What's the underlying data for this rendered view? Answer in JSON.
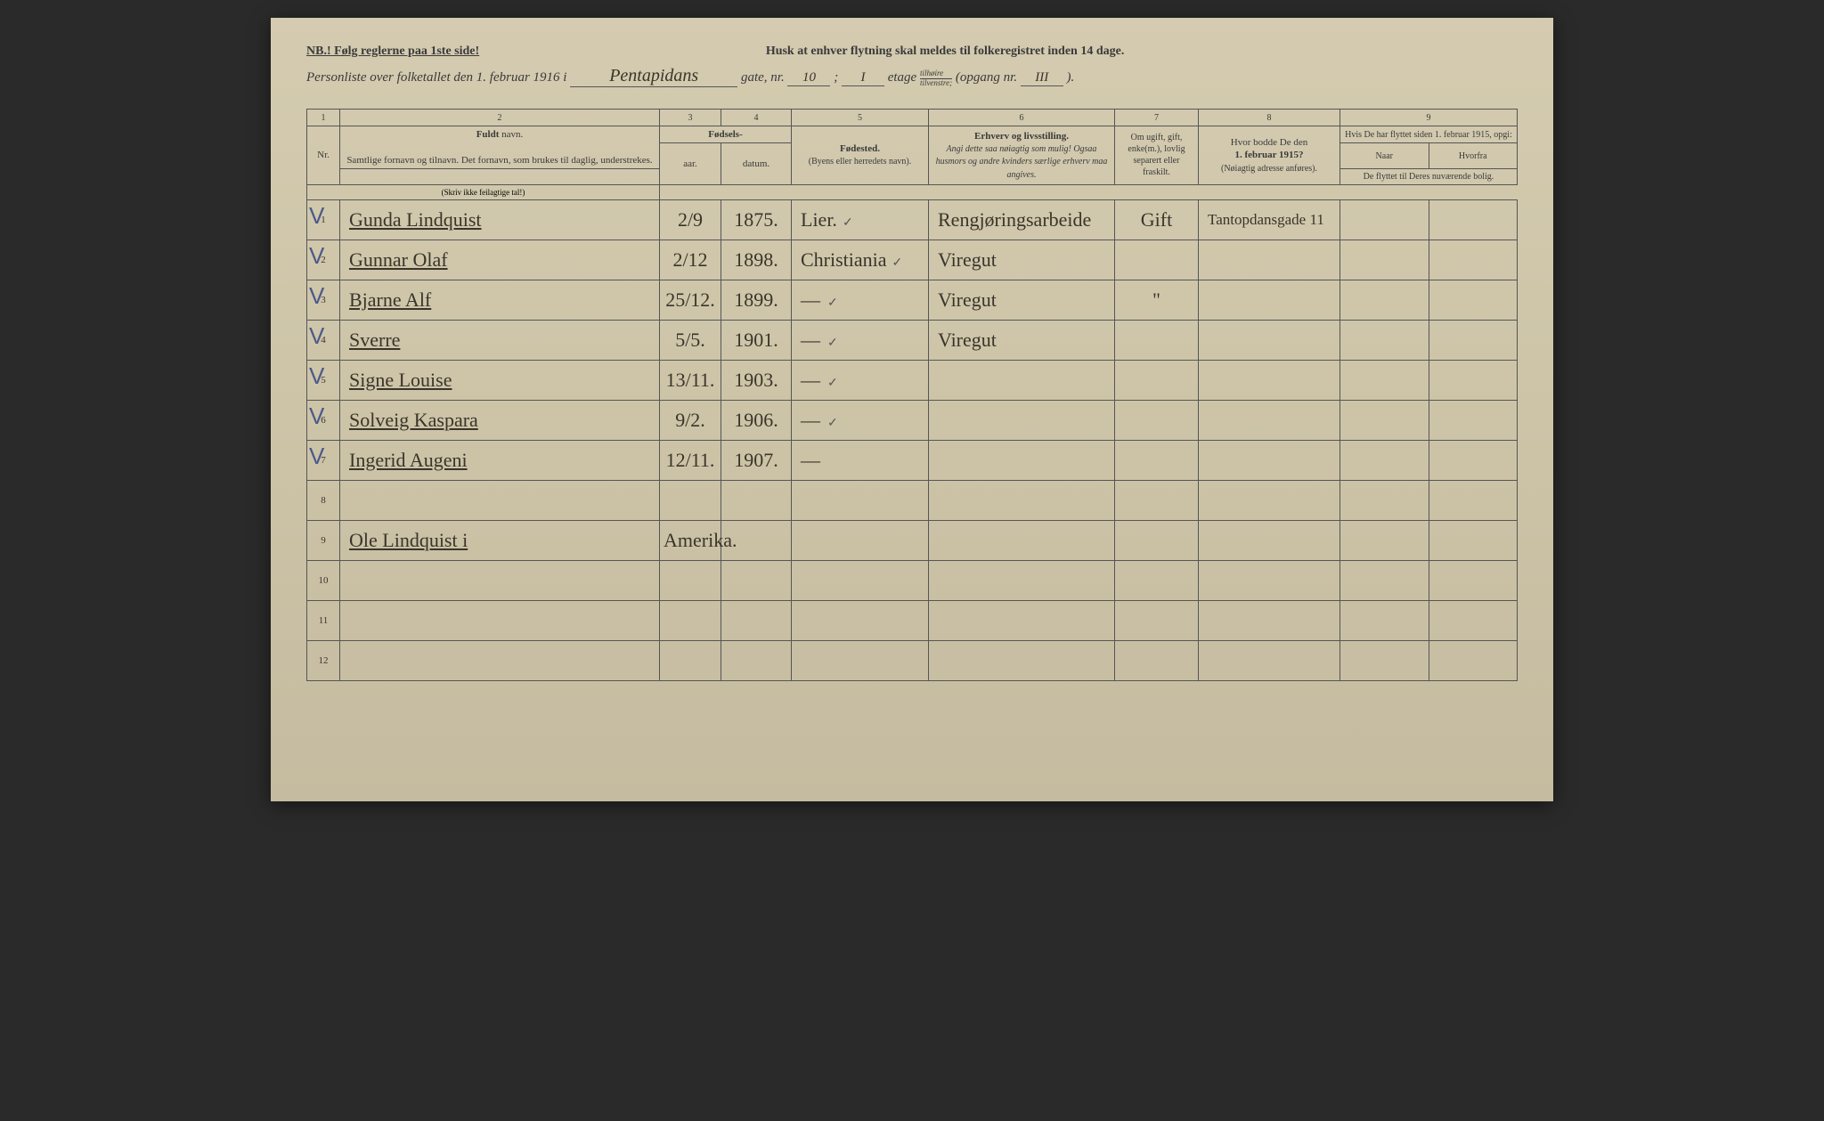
{
  "top_nb": "NB.!  Følg reglerne paa 1ste side!",
  "top_center": "Husk at enhver flytning skal meldes til folkeregistret inden 14 dage.",
  "hdr": {
    "prefix": "Personliste over folketallet den 1. februar 1916 i",
    "street": "Pentapidans",
    "gate_lbl": "gate, nr.",
    "gate_nr": "10",
    "sep": ";",
    "etage_nr": "I",
    "etage_lbl": "etage",
    "frac_top": "tilhøire",
    "frac_bot": "tilvenstre;",
    "opgang_lbl": "(opgang nr.",
    "opgang_nr": "III",
    "close": ")."
  },
  "cols": [
    "1",
    "2",
    "3",
    "4",
    "5",
    "6",
    "7",
    "8",
    "9"
  ],
  "head": {
    "nr": "Nr.",
    "name_t": "Fuldt",
    "name_t2": "navn.",
    "name_sub": "Samtlige fornavn og tilnavn. Det fornavn, som brukes til daglig, understrekes.",
    "fod_t": "Fødsels-",
    "aar": "aar.",
    "datum": "datum.",
    "fod_note": "(Skriv ikke feilagtige tal!)",
    "place_t": "Fødested.",
    "place_sub": "(Byens eller herredets navn).",
    "occ_t": "Erhverv og livsstilling.",
    "occ_sub": "Angi dette saa nøiagtig som mulig! Ogsaa husmors og andre kvinders særlige erhverv maa angives.",
    "mar": "Om ugift, gift, enke(m.), lovlig separert eller fraskilt.",
    "prev_t": "Hvor bodde De den",
    "prev_b": "1. februar 1915?",
    "prev_sub": "(Nøiagtig adresse anføres).",
    "mv_t": "Hvis De har flyttet siden 1. februar 1915, opgi:",
    "mv_when": "Naar",
    "mv_from": "Hvorfra",
    "mv_sub": "De flyttet til Deres nuværende bolig."
  },
  "rows": [
    {
      "n": "1",
      "chk": true,
      "name": "Gunda Lindquist",
      "dt": "2/9",
      "yr": "1875.",
      "place": "Lier.",
      "tick": "✓",
      "occ": "Rengjøringsarbeide",
      "mar": "Gift",
      "prev": "Tantopdansgade 11"
    },
    {
      "n": "2",
      "chk": true,
      "name": "Gunnar Olaf",
      "dt": "2/12",
      "yr": "1898.",
      "place": "Christiania",
      "tick": "✓",
      "occ": "Viregut",
      "mar": "",
      "prev": ""
    },
    {
      "n": "3",
      "chk": true,
      "name": "Bjarne Alf",
      "dt": "25/12.",
      "yr": "1899.",
      "place": "—",
      "tick": "✓",
      "occ": "Viregut",
      "mar": "\"",
      "prev": ""
    },
    {
      "n": "4",
      "chk": true,
      "name": "Sverre",
      "dt": "5/5.",
      "yr": "1901.",
      "place": "—",
      "tick": "✓",
      "occ": "Viregut",
      "mar": "",
      "prev": ""
    },
    {
      "n": "5",
      "chk": true,
      "name": "Signe Louise",
      "dt": "13/11.",
      "yr": "1903.",
      "place": "—",
      "tick": "✓",
      "occ": "",
      "mar": "",
      "prev": ""
    },
    {
      "n": "6",
      "chk": true,
      "name": "Solveig Kaspara",
      "dt": "9/2.",
      "yr": "1906.",
      "place": "—",
      "tick": "✓",
      "occ": "",
      "mar": "",
      "prev": ""
    },
    {
      "n": "7",
      "chk": true,
      "name": "Ingerid Augeni",
      "dt": "12/11.",
      "yr": "1907.",
      "place": "—",
      "tick": "",
      "occ": "",
      "mar": "",
      "prev": ""
    },
    {
      "n": "8",
      "chk": false,
      "name": "",
      "dt": "",
      "yr": "",
      "place": "",
      "tick": "",
      "occ": "",
      "mar": "",
      "prev": ""
    },
    {
      "n": "9",
      "chk": false,
      "name": "Ole Lindquist  i",
      "dt": "Amerika.",
      "yr": "",
      "place": "",
      "tick": "",
      "occ": "",
      "mar": "",
      "prev": ""
    },
    {
      "n": "10",
      "chk": false,
      "name": "",
      "dt": "",
      "yr": "",
      "place": "",
      "tick": "",
      "occ": "",
      "mar": "",
      "prev": ""
    },
    {
      "n": "11",
      "chk": false,
      "name": "",
      "dt": "",
      "yr": "",
      "place": "",
      "tick": "",
      "occ": "",
      "mar": "",
      "prev": ""
    },
    {
      "n": "12",
      "chk": false,
      "name": "",
      "dt": "",
      "yr": "",
      "place": "",
      "tick": "",
      "occ": "",
      "mar": "",
      "prev": ""
    }
  ]
}
